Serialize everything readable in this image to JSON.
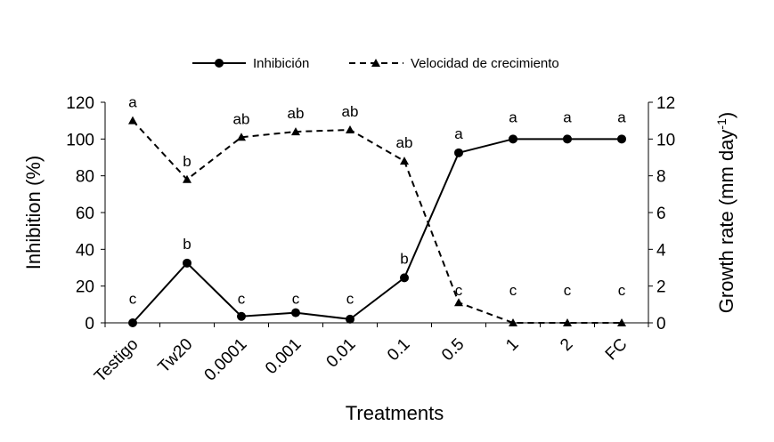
{
  "chart_data": {
    "type": "line",
    "xlabel": "Treatments",
    "ylabel": "Inhibition (%)",
    "y2label": {
      "main": "Growth rate (mm day",
      "sup": "-1",
      "close": ")"
    },
    "categories": [
      "Testigo",
      "Tw20",
      "0.0001",
      "0.001",
      "0.01",
      "0.1",
      "0.5",
      "1",
      "2",
      "FC"
    ],
    "ylim": [
      0,
      120
    ],
    "y2lim": [
      0,
      12
    ],
    "yticks": [
      "0",
      "20",
      "40",
      "60",
      "80",
      "100",
      "120"
    ],
    "y2ticks": [
      "0",
      "2",
      "4",
      "6",
      "8",
      "10",
      "12"
    ],
    "legend_position": "top",
    "series": [
      {
        "name": "Inhibición",
        "axis": "left",
        "style": "solid",
        "marker": "circle",
        "values": [
          0,
          32.5,
          3.5,
          5.5,
          2,
          24.5,
          92.5,
          100,
          100,
          100
        ],
        "labels": [
          "c",
          "b",
          "c",
          "c",
          "c",
          "b",
          "a",
          "a",
          "a",
          "a"
        ]
      },
      {
        "name": "Velocidad de crecimiento",
        "axis": "right",
        "style": "dashed",
        "marker": "triangle",
        "values": [
          11.0,
          7.8,
          10.1,
          10.4,
          10.5,
          8.8,
          1.1,
          0,
          0,
          0
        ],
        "labels": [
          "a",
          "b",
          "ab",
          "ab",
          "ab",
          "ab",
          "c",
          "c",
          "c",
          "c"
        ]
      }
    ]
  }
}
